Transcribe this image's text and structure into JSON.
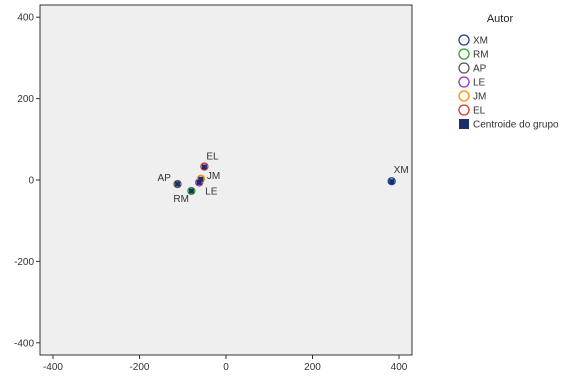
{
  "chart_data": {
    "type": "scatter",
    "xlim": [
      -430,
      430
    ],
    "ylim": [
      -430,
      430
    ],
    "x_ticks": [
      -400,
      -200,
      0,
      200,
      400
    ],
    "y_ticks": [
      400,
      200,
      0,
      -200,
      -400
    ],
    "grid": false,
    "legend_position": "right",
    "legend_title": "Autor",
    "series": [
      {
        "name": "XM",
        "color": "#1f3f8f",
        "points": [
          {
            "x": 383,
            "y": -3,
            "label": "XM"
          }
        ]
      },
      {
        "name": "RM",
        "color": "#2ca02c",
        "points": [
          {
            "x": -80,
            "y": -27,
            "label": "RM"
          }
        ]
      },
      {
        "name": "AP",
        "color": "#555555",
        "points": [
          {
            "x": -112,
            "y": -10,
            "label": "AP"
          }
        ]
      },
      {
        "name": "LE",
        "color": "#9b30c0",
        "points": [
          {
            "x": -62,
            "y": -6,
            "label": "LE"
          }
        ]
      },
      {
        "name": "JM",
        "color": "#ff8c00",
        "points": [
          {
            "x": -58,
            "y": 3,
            "label": "JM"
          }
        ]
      },
      {
        "name": "EL",
        "color": "#e03030",
        "points": [
          {
            "x": -50,
            "y": 33,
            "label": "EL"
          }
        ]
      }
    ],
    "centroids": {
      "name": "Centroide do grupo",
      "color": "#1a2f6b",
      "points": [
        {
          "x": 383,
          "y": -4
        },
        {
          "x": -80,
          "y": -27
        },
        {
          "x": -112,
          "y": -10
        },
        {
          "x": -62,
          "y": -6
        },
        {
          "x": -58,
          "y": 2
        },
        {
          "x": -50,
          "y": 32
        }
      ]
    }
  },
  "colors": {
    "plot_background": "#efefef",
    "axis": "#333333"
  }
}
